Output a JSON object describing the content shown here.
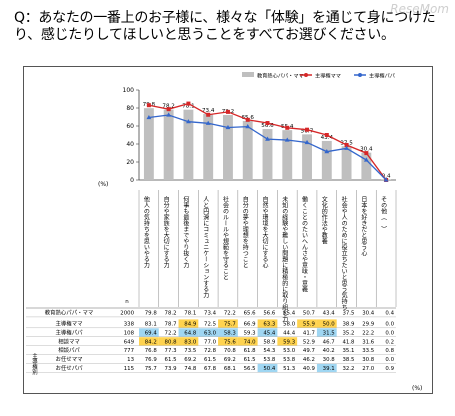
{
  "watermark": "ReseMom",
  "question": {
    "prefix": "Q：",
    "text": "あなたの一番上のお子様に、様々な「体験」を通じて身につけたり、感じたりしてほしいと思うことをすべてお選びください。"
  },
  "chart_data": {
    "type": "bar",
    "categories": [
      "他人の気持ちを思いやる力",
      "自分や家族を大切にする力",
      "何事も最後までやり抜く力",
      "人と円滑にコミュニケーションする力",
      "社会のルールや規範を守ること",
      "自分の夢や理想を持つこと",
      "自然や環境を大切にする心",
      "未知の経験や難しい問題に積極的に取り組む力",
      "働くことのたいへんさや意味・意義",
      "文化的作法や教養",
      "社会や人のために役立ちたいと思う気持ち",
      "日本を好きだと思う心",
      "その他（　）"
    ],
    "axis_unit": "(%)",
    "ylim": [
      0,
      100
    ],
    "yticks": [
      0,
      20,
      40,
      60,
      80,
      100
    ],
    "legend": [
      {
        "name": "教育熱心パパ・ママ",
        "type": "bar",
        "color": "#bfbfbf"
      },
      {
        "name": "主導権ママ",
        "type": "line",
        "color": "#d62728"
      },
      {
        "name": "主導権パパ",
        "type": "line",
        "color": "#3366cc"
      }
    ],
    "series": [
      {
        "name": "教育熱心パパ・ママ",
        "type": "bar",
        "color": "#bfbfbf",
        "values": [
          79.8,
          78.2,
          78.1,
          73.4,
          72.2,
          65.6,
          56.6,
          55.4,
          50.7,
          43.4,
          37.5,
          30.4,
          0.4
        ]
      },
      {
        "name": "主導権ママ",
        "type": "line",
        "color": "#d62728",
        "values": [
          83.1,
          78.7,
          84.9,
          72.5,
          75.7,
          66.9,
          63.3,
          58.0,
          55.9,
          50.0,
          38.9,
          29.9,
          0.0
        ]
      },
      {
        "name": "主導権パパ",
        "type": "line",
        "color": "#3366cc",
        "values": [
          69.4,
          72.2,
          64.8,
          63.0,
          58.3,
          59.3,
          45.4,
          44.4,
          41.7,
          31.5,
          35.2,
          22.2,
          0.0
        ]
      }
    ],
    "data_labels": [
      "79.8",
      "78.2",
      "78.1",
      "73.4",
      "72.2",
      "65.6",
      "56.6",
      "55.4",
      "50.7",
      "43.4",
      "37.5",
      "30.4",
      "0.4"
    ]
  },
  "table": {
    "n_header": "n",
    "unit": "(%)",
    "group_label": "主導権別",
    "rows": [
      {
        "label": "教育熱心パパ・ママ",
        "n": "2000",
        "values": [
          "79.8",
          "78.2",
          "78.1",
          "73.4",
          "72.2",
          "65.6",
          "56.6",
          "55.4",
          "50.7",
          "43.4",
          "37.5",
          "30.4",
          "0.4"
        ],
        "hl": [],
        "grouped": false
      },
      {
        "label": "主導権ママ",
        "n": "338",
        "values": [
          "83.1",
          "78.7",
          "84.9",
          "72.5",
          "75.7",
          "66.9",
          "63.3",
          "58.0",
          "55.9",
          "50.0",
          "38.9",
          "29.9",
          "0.0"
        ],
        "hl": [
          2,
          4,
          6,
          8,
          9
        ],
        "grouped": true
      },
      {
        "label": "主導権パパ",
        "n": "108",
        "values": [
          "69.4",
          "72.2",
          "64.8",
          "63.0",
          "58.3",
          "59.3",
          "45.4",
          "44.4",
          "41.7",
          "31.5",
          "35.2",
          "22.2",
          "0.0"
        ],
        "hl": [
          0,
          2,
          3,
          4,
          6,
          9
        ],
        "grouped": true
      },
      {
        "label": "相談ママ",
        "n": "649",
        "values": [
          "84.2",
          "80.8",
          "83.0",
          "77.0",
          "75.6",
          "74.0",
          "58.9",
          "59.3",
          "52.9",
          "46.7",
          "41.8",
          "31.6",
          "0.2"
        ],
        "hl": [
          0,
          1,
          2,
          4,
          5,
          7
        ],
        "grouped": true
      },
      {
        "label": "相談パパ",
        "n": "777",
        "values": [
          "76.8",
          "77.3",
          "73.5",
          "72.8",
          "70.8",
          "61.8",
          "54.3",
          "53.0",
          "49.7",
          "40.2",
          "35.1",
          "33.5",
          "0.8"
        ],
        "hl": [],
        "grouped": true
      },
      {
        "label": "お任せママ",
        "n": "13",
        "values": [
          "76.9",
          "61.5",
          "69.2",
          "61.5",
          "69.2",
          "61.5",
          "53.8",
          "53.8",
          "46.2",
          "30.8",
          "38.5",
          "30.8",
          "0.0"
        ],
        "hl": [],
        "grouped": true
      },
      {
        "label": "お任せパパ",
        "n": "115",
        "values": [
          "75.7",
          "73.9",
          "74.8",
          "67.8",
          "68.1",
          "56.5",
          "50.4",
          "51.3",
          "40.9",
          "39.1",
          "32.2",
          "27.0",
          "0.9"
        ],
        "hl": [
          6,
          9
        ],
        "grouped": true
      }
    ],
    "highlight_colors": {
      "high": "#ffd34f",
      "low": "#9fd6f2"
    }
  }
}
